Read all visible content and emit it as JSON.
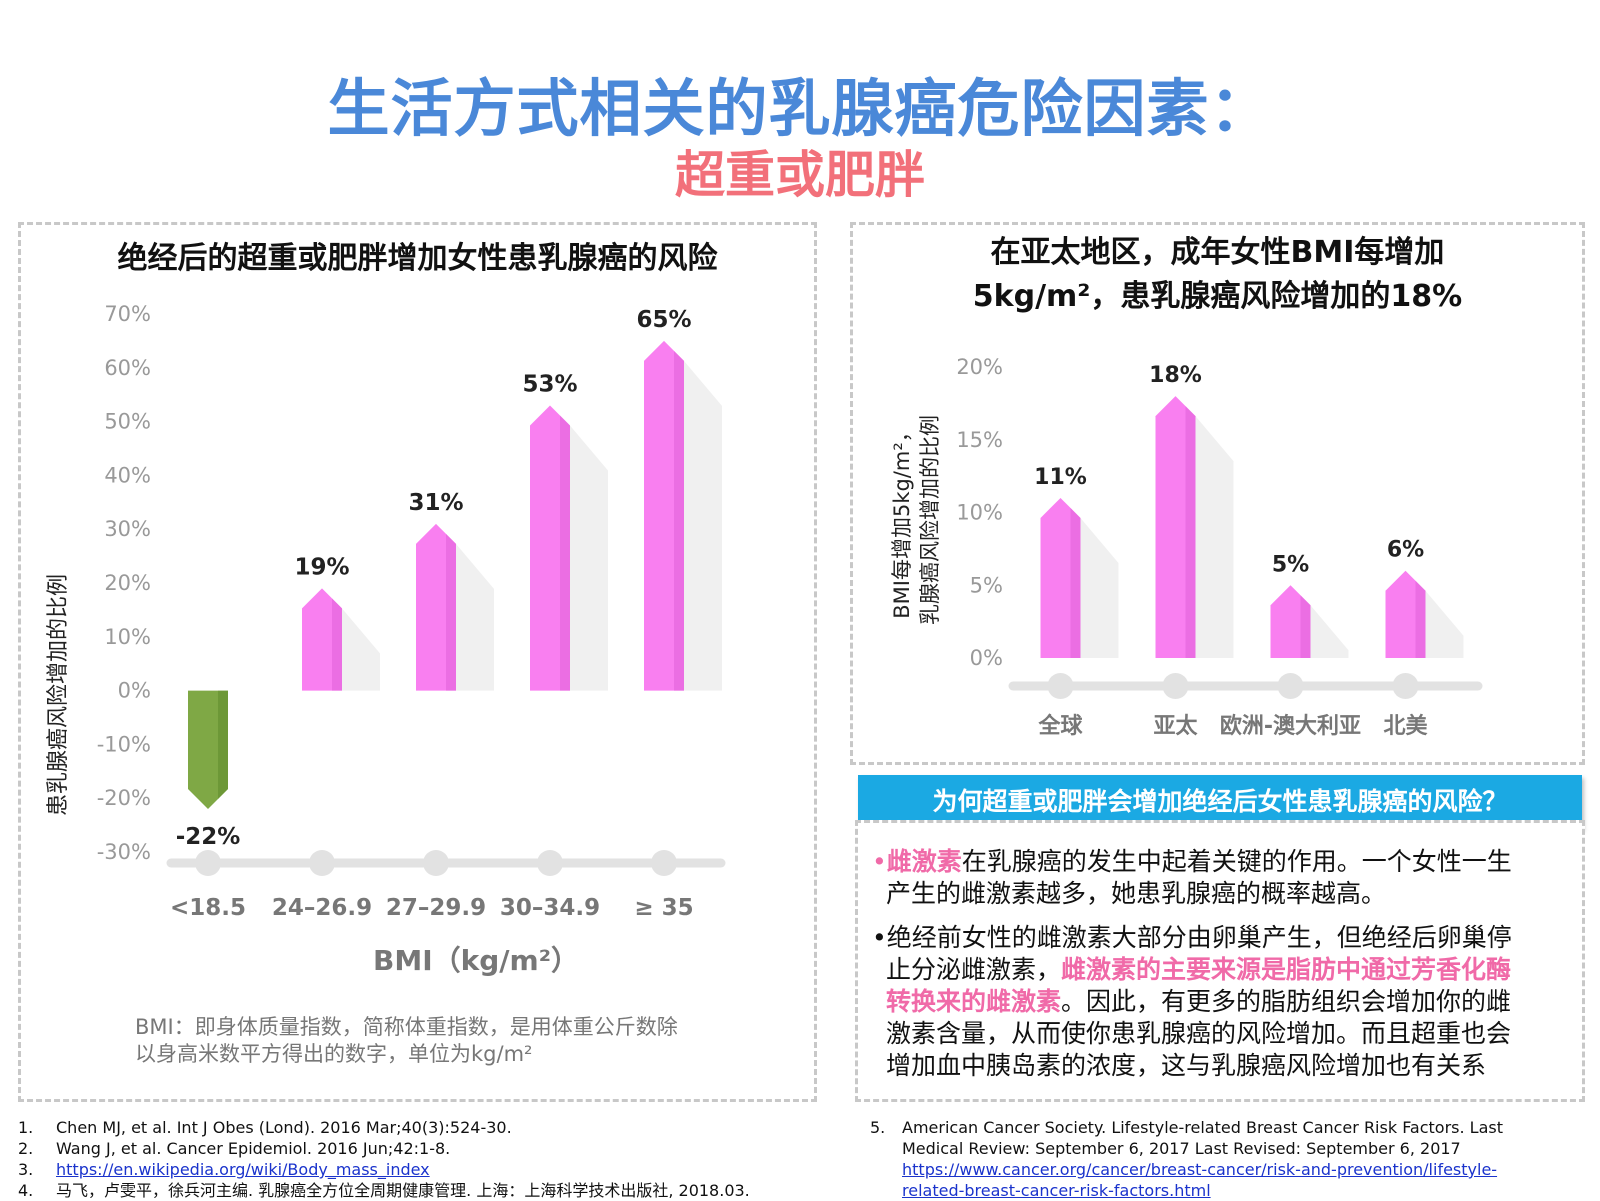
{
  "header": {
    "title": "生活方式相关的乳腺癌危险因素：",
    "subtitle": "超重或肥胖"
  },
  "left_panel": {
    "title": "绝经后的超重或肥胖增加女性患乳腺癌的风险",
    "bmi_note_line1": "BMI：即身体质量指数，简称体重指数，是用体重公斤数除",
    "bmi_note_line2": "以身高米数平方得出的数字，单位为kg/m²"
  },
  "right_panel": {
    "title_line1": "在亚太地区，成年女性BMI每增加",
    "title_line2": "5kg/m²，患乳腺癌风险增加的18%"
  },
  "question": {
    "text": "为何超重或肥胖会增加绝经后女性患乳腺癌的风险？"
  },
  "explanation": {
    "bullet1_highlight": "雌激素",
    "bullet1_rest_a": "在乳腺癌的发生中起着关键的作用。一个女性一生",
    "bullet1_rest_b": "产生的雌激素越多，她患乳腺癌的概率越高。",
    "bullet2_a": "绝经前女性的雌激素大部分由卵巢产生，但绝经后卵巢停",
    "bullet2_b": "止分泌雌激素，",
    "bullet2_highlight_a": "雌激素的主要来源是脂肪中通过芳香化酶",
    "bullet2_highlight_b": "转换来的雌激素",
    "bullet2_c": "。因此，有更多的脂肪组织会增加你的雌",
    "bullet2_d": "激素含量，从而使你患乳腺癌的风险增加。而且超重也会",
    "bullet2_e": "增加血中胰岛素的浓度，这与乳腺癌风险增加也有关系"
  },
  "references_left": [
    {
      "num": "1.",
      "text": "Chen MJ, et al. Int J Obes (Lond). 2016 Mar;40(3):524-30."
    },
    {
      "num": "2.",
      "text": "Wang J, et al. Cancer Epidemiol. 2016 Jun;42:1-8."
    },
    {
      "num": "3.",
      "text": "https://en.wikipedia.org/wiki/Body_mass_index"
    },
    {
      "num": "4.",
      "text": "马飞，卢雯平，徐兵河主编. 乳腺癌全方位全周期健康管理. 上海：上海科学技术出版社, 2018.03."
    }
  ],
  "references_right": {
    "num": "5.",
    "line1": "American Cancer Society. Lifestyle-related Breast Cancer Risk Factors. Last",
    "line2": "Medical Review: September 6, 2017 Last Revised: September 6, 2017",
    "link1": "https://www.cancer.org/cancer/breast-cancer/risk-and-prevention/lifestyle-",
    "link2": "related-breast-cancer-risk-factors.html"
  },
  "colors": {
    "title_blue": "#4a88d8",
    "subtitle_red": "#f2707a",
    "bar_pink": "#f97ff0",
    "bar_green": "#7fa845",
    "question_blue": "#1ba9e3",
    "highlight_pink": "#f06aa8"
  },
  "chart_data": [
    {
      "type": "bar",
      "categories": [
        "<18.5",
        "24–26.9",
        "27–29.9",
        "30–34.9",
        "≥ 35"
      ],
      "values": [
        -22,
        19,
        31,
        53,
        65
      ],
      "value_labels": [
        "-22%",
        "19%",
        "31%",
        "53%",
        "65%"
      ],
      "xlabel": "BMI（kg/m²）",
      "ylabel": "患乳腺癌风险增加的比例",
      "ylim": [
        -30,
        70
      ],
      "yticks": [
        -30,
        -20,
        -10,
        0,
        10,
        20,
        30,
        40,
        50,
        60,
        70
      ],
      "ytick_labels": [
        "-30%",
        "-20%",
        "-10%",
        "0%",
        "10%",
        "20%",
        "30%",
        "40%",
        "50%",
        "60%",
        "70%"
      ],
      "grid": false
    },
    {
      "type": "bar",
      "categories": [
        "全球",
        "亚太",
        "欧洲-澳大利亚",
        "北美"
      ],
      "values": [
        11,
        18,
        5,
        6
      ],
      "value_labels": [
        "11%",
        "18%",
        "5%",
        "6%"
      ],
      "ylabel_line1": "BMI每增加5kg/m²，",
      "ylabel_line2": "乳腺癌风险增加的比例",
      "ylim": [
        0,
        20
      ],
      "yticks": [
        0,
        5,
        10,
        15,
        20
      ],
      "ytick_labels": [
        "0%",
        "5%",
        "10%",
        "15%",
        "20%"
      ],
      "grid": false
    }
  ]
}
